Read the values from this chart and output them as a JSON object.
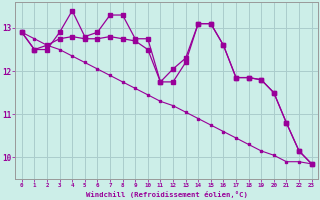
{
  "bg_color": "#cceee8",
  "grid_color": "#aacccc",
  "line_color": "#990099",
  "x_values": [
    0,
    1,
    2,
    3,
    4,
    5,
    6,
    7,
    8,
    9,
    10,
    11,
    12,
    13,
    14,
    15,
    16,
    17,
    18,
    19,
    20,
    21,
    22,
    23
  ],
  "series_jagged": [
    12.9,
    12.5,
    12.5,
    12.9,
    13.4,
    12.8,
    12.9,
    13.3,
    13.3,
    12.75,
    12.75,
    11.75,
    11.75,
    12.2,
    13.1,
    13.1,
    12.6,
    11.85,
    11.85,
    11.8,
    11.5,
    10.8,
    10.15,
    9.85
  ],
  "series_smooth": [
    12.9,
    12.5,
    12.6,
    12.75,
    12.8,
    12.75,
    12.75,
    12.8,
    12.75,
    12.7,
    12.5,
    11.75,
    12.05,
    12.3,
    13.1,
    13.1,
    12.6,
    11.85,
    11.85,
    11.8,
    11.5,
    10.8,
    10.15,
    9.85
  ],
  "series_trend": [
    12.9,
    12.75,
    12.6,
    12.5,
    12.35,
    12.2,
    12.05,
    11.9,
    11.75,
    11.6,
    11.45,
    11.3,
    11.2,
    11.05,
    10.9,
    10.75,
    10.6,
    10.45,
    10.3,
    10.15,
    10.05,
    9.9,
    9.9,
    9.85
  ],
  "x_labels": [
    "0",
    "1",
    "2",
    "3",
    "4",
    "5",
    "6",
    "7",
    "8",
    "9",
    "10",
    "11",
    "12",
    "13",
    "14",
    "15",
    "16",
    "17",
    "18",
    "19",
    "20",
    "21",
    "22",
    "23"
  ],
  "ylabel_values": [
    10,
    11,
    12,
    13
  ],
  "ylim": [
    9.5,
    13.6
  ],
  "xlim": [
    -0.5,
    23.5
  ],
  "xlabel": "Windchill (Refroidissement éolien,°C)"
}
